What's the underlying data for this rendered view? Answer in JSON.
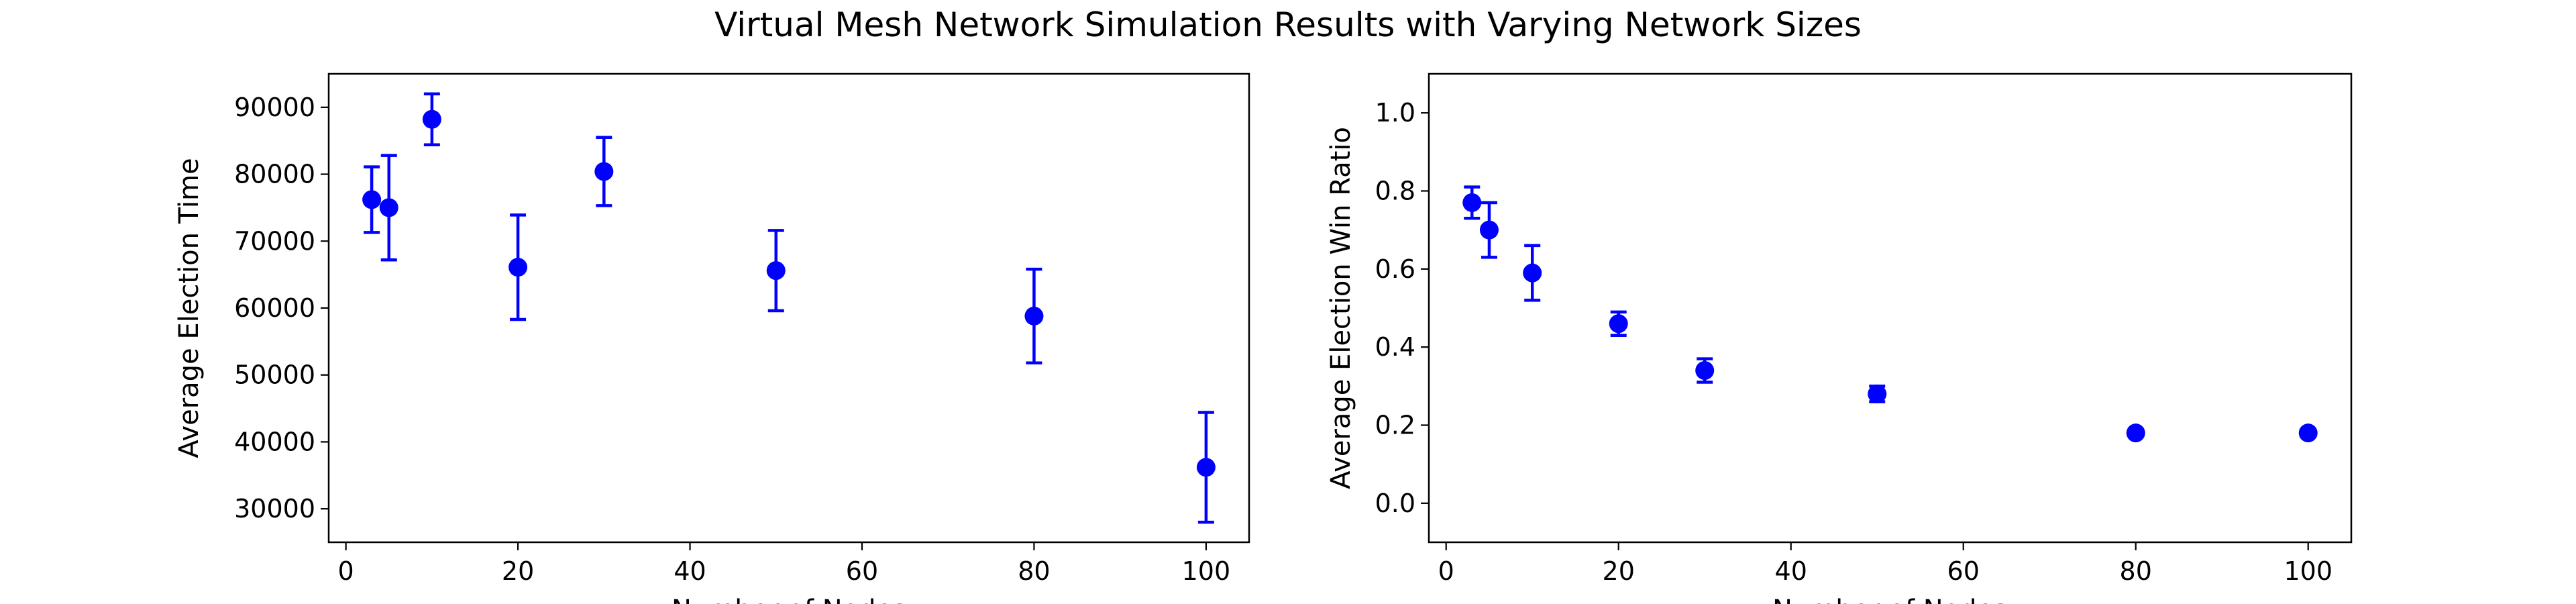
{
  "figure_title": "Virtual Mesh Network Simulation Results with Varying Network Sizes",
  "colors": {
    "marker": "#0000ff",
    "errorbar": "#0000ff",
    "axes": "#000000",
    "background": "#ffffff"
  },
  "chart_data": [
    {
      "type": "scatter",
      "title": "",
      "xlabel": "Number of Nodes",
      "ylabel": "Average Election Time",
      "xlim": [
        -2,
        105
      ],
      "ylim": [
        25000,
        95000
      ],
      "x_ticks": [
        0,
        20,
        40,
        60,
        80,
        100
      ],
      "y_ticks": [
        30000,
        40000,
        50000,
        60000,
        70000,
        80000,
        90000
      ],
      "x_tick_labels": [
        "0",
        "20",
        "40",
        "60",
        "80",
        "100"
      ],
      "y_tick_labels": [
        "30000",
        "40000",
        "50000",
        "60000",
        "70000",
        "80000",
        "90000"
      ],
      "grid": false,
      "legend": false,
      "series": [
        {
          "x": [
            3,
            5,
            10,
            20,
            30,
            50,
            80,
            100
          ],
          "y": [
            76200,
            75000,
            88200,
            66100,
            80400,
            65600,
            58800,
            36200
          ],
          "yerr": [
            4900,
            7800,
            3800,
            7800,
            5100,
            6000,
            7000,
            8200
          ]
        }
      ]
    },
    {
      "type": "scatter",
      "title": "",
      "xlabel": "Number of Nodes",
      "ylabel": "Average Election Win Ratio",
      "xlim": [
        -2,
        105
      ],
      "ylim": [
        -0.1,
        1.1
      ],
      "x_ticks": [
        0,
        20,
        40,
        60,
        80,
        100
      ],
      "y_ticks": [
        0.0,
        0.2,
        0.4,
        0.6,
        0.8,
        1.0
      ],
      "x_tick_labels": [
        "0",
        "20",
        "40",
        "60",
        "80",
        "100"
      ],
      "y_tick_labels": [
        "0.0",
        "0.2",
        "0.4",
        "0.6",
        "0.8",
        "1.0"
      ],
      "grid": false,
      "legend": false,
      "series": [
        {
          "x": [
            3,
            5,
            10,
            20,
            30,
            50,
            80,
            100
          ],
          "y": [
            0.77,
            0.7,
            0.59,
            0.46,
            0.34,
            0.28,
            0.18,
            0.18
          ],
          "yerr": [
            0.04,
            0.07,
            0.07,
            0.03,
            0.03,
            0.02,
            0.0,
            0.0
          ]
        }
      ]
    }
  ]
}
